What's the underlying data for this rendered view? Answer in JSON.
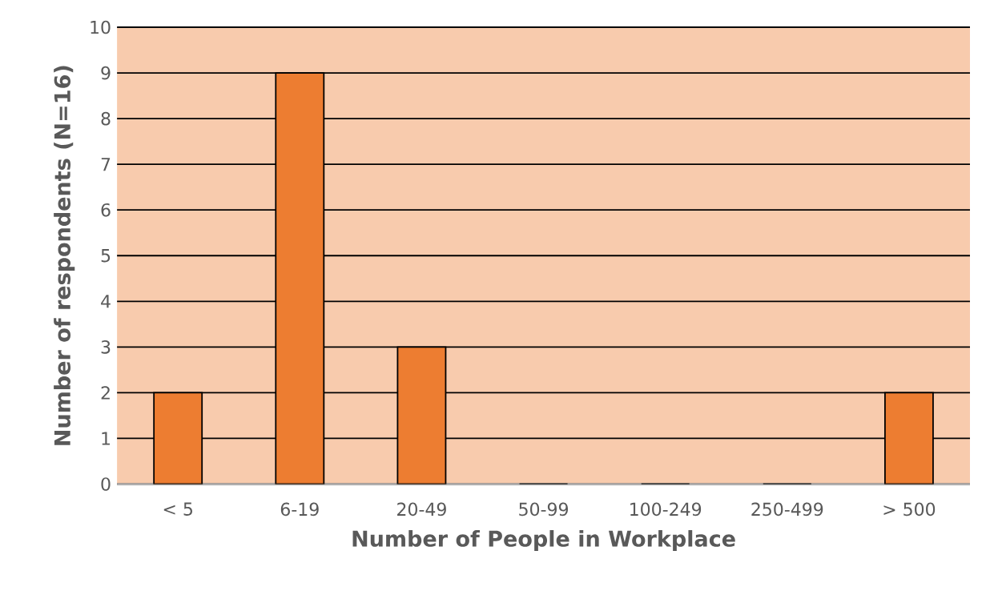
{
  "chart_data": {
    "type": "bar",
    "xlabel": "Number of People in Workplace",
    "ylabel": "Number of respondents (N=16)",
    "categories": [
      "< 5",
      "6-19",
      "20-49",
      "50-99",
      "100-249",
      "250-499",
      "> 500"
    ],
    "values": [
      2,
      9,
      3,
      0,
      0,
      0,
      2
    ],
    "color": "#ed7d31",
    "ylim": [
      0,
      10
    ],
    "yticks": [
      0,
      1,
      2,
      3,
      4,
      5,
      6,
      7,
      8,
      9,
      10
    ],
    "grid": "y"
  }
}
